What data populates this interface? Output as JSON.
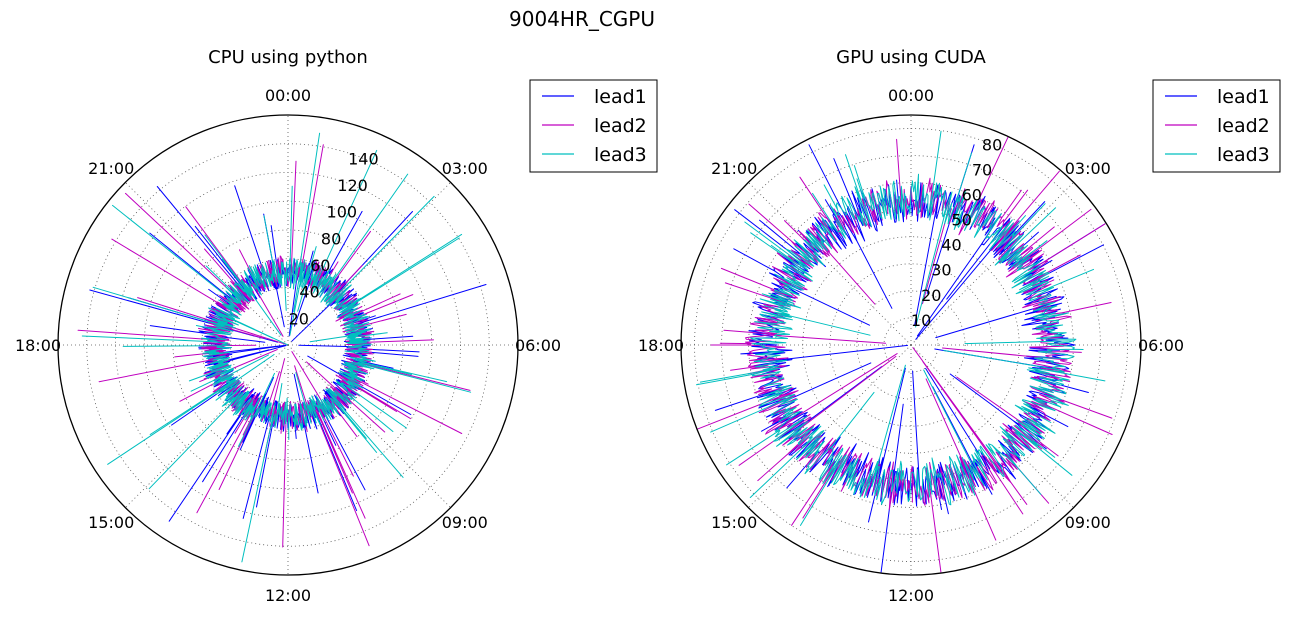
{
  "figure_title": "9004HR_CGPU",
  "colors": {
    "lead1": "#0000ff",
    "lead2": "#bf00bf",
    "lead3": "#00bfbf",
    "axis": "#000000",
    "grid": "#555555"
  },
  "chart_data": [
    {
      "type": "polar-line",
      "title": "CPU using python",
      "theta_labels": [
        "00:00",
        "03:00",
        "06:00",
        "09:00",
        "12:00",
        "15:00",
        "18:00",
        "21:00"
      ],
      "r_ticks": [
        20,
        40,
        60,
        80,
        100,
        120,
        140
      ],
      "rlim": [
        0,
        160
      ],
      "grid": true,
      "legend_position": "upper-right-outside",
      "series": [
        {
          "name": "lead1",
          "color": "#0000ff",
          "baseline_range": [
            40,
            60
          ],
          "spike_max": 150
        },
        {
          "name": "lead2",
          "color": "#bf00bf",
          "baseline_range": [
            40,
            60
          ],
          "spike_max": 155
        },
        {
          "name": "lead3",
          "color": "#00bfbf",
          "baseline_range": [
            40,
            60
          ],
          "spike_max": 160
        }
      ]
    },
    {
      "type": "polar-line",
      "title": "GPU using CUDA",
      "theta_labels": [
        "00:00",
        "03:00",
        "06:00",
        "09:00",
        "12:00",
        "15:00",
        "18:00",
        "21:00"
      ],
      "r_ticks": [
        10,
        20,
        30,
        40,
        50,
        60,
        70,
        80
      ],
      "rlim": [
        0,
        85
      ],
      "grid": true,
      "legend_position": "upper-right-outside",
      "series": [
        {
          "name": "lead1",
          "color": "#0000ff",
          "baseline_range": [
            45,
            60
          ],
          "spike_max": 85
        },
        {
          "name": "lead2",
          "color": "#bf00bf",
          "baseline_range": [
            45,
            60
          ],
          "spike_max": 85
        },
        {
          "name": "lead3",
          "color": "#00bfbf",
          "baseline_range": [
            45,
            60
          ],
          "spike_max": 85
        }
      ]
    }
  ]
}
